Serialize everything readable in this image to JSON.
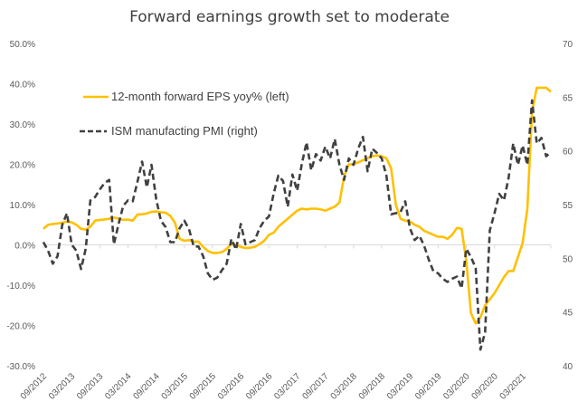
{
  "chart_data": {
    "type": "line",
    "title": "Forward earnings growth set to moderate",
    "xlabel": "",
    "ylabel_left": "",
    "ylabel_right": "",
    "left_axis": {
      "ylim": [
        -30,
        50
      ],
      "ticks": [
        50,
        40,
        30,
        20,
        10,
        0,
        -10,
        -20,
        -30
      ],
      "tick_labels": [
        "50.0%",
        "40.0%",
        "30.0%",
        "20.0%",
        "10.0%",
        "0.0%",
        "-10.0%",
        "-20.0%",
        "-30.0%"
      ]
    },
    "right_axis": {
      "ylim": [
        40,
        70
      ],
      "ticks": [
        70,
        65,
        60,
        55,
        50,
        45,
        40
      ],
      "tick_labels": [
        "70",
        "65",
        "60",
        "55",
        "50",
        "45",
        "40"
      ]
    },
    "x_start": "09/2012",
    "x_end": "09/2021",
    "x_frequency": "monthly",
    "x_tick_labels": [
      "09/2012",
      "03/2013",
      "09/2013",
      "03/2014",
      "09/2014",
      "03/2015",
      "09/2015",
      "03/2016",
      "09/2016",
      "03/2017",
      "09/2017",
      "03/2018",
      "09/2018",
      "03/2019",
      "09/2019",
      "03/2020",
      "09/2020",
      "03/2021"
    ],
    "grid": false,
    "zero_line": true,
    "legend": {
      "placement": "top-left",
      "entries": [
        {
          "label": "12-month forward EPS yoy% (left)",
          "style": "solid",
          "color": "#FFC000"
        },
        {
          "label": "ISM manufacting PMI (right)",
          "style": "dashed",
          "color": "#404040"
        }
      ]
    },
    "series": [
      {
        "name": "12-month forward EPS yoy% (left)",
        "axis": "left",
        "color": "#FFC000",
        "values": [
          4.0,
          5.0,
          5.2,
          5.3,
          5.5,
          5.8,
          5.6,
          5.0,
          4.0,
          3.8,
          4.5,
          6.0,
          6.2,
          6.3,
          6.5,
          6.8,
          6.5,
          6.2,
          6.3,
          6.0,
          7.5,
          7.6,
          7.8,
          8.2,
          8.3,
          8.1,
          8.0,
          7.2,
          5.5,
          1.5,
          1.0,
          1.2,
          0.8,
          0.8,
          -0.5,
          -1.5,
          -2.0,
          -2.0,
          -1.8,
          -1.0,
          0.3,
          0.0,
          -0.5,
          -0.8,
          -0.7,
          -0.5,
          0.2,
          1.0,
          2.5,
          3.0,
          4.5,
          5.5,
          6.5,
          7.5,
          8.5,
          9.0,
          8.8,
          9.0,
          9.0,
          8.8,
          8.5,
          9.0,
          9.5,
          10.5,
          17.0,
          20.0,
          20.0,
          20.5,
          21.0,
          21.5,
          22.0,
          22.2,
          22.0,
          21.5,
          19.0,
          10.0,
          6.5,
          6.0,
          5.8,
          5.0,
          4.5,
          3.5,
          3.0,
          2.5,
          2.0,
          2.0,
          1.5,
          2.5,
          4.2,
          4.0,
          -4.0,
          -17.0,
          -19.5,
          -18.0,
          -15.0,
          -13.5,
          -12.0,
          -10.0,
          -8.0,
          -6.5,
          -6.5,
          -3.0,
          0.5,
          9.0,
          33.0,
          39.0,
          39.0,
          39.0,
          38.0
        ]
      },
      {
        "name": "ISM manufacting PMI (right)",
        "axis": "right",
        "color": "#404040",
        "values": [
          51.5,
          50.7,
          49.5,
          50.2,
          53.1,
          54.2,
          51.3,
          50.7,
          49.0,
          50.9,
          55.4,
          55.7,
          56.4,
          57.0,
          57.3,
          51.3,
          53.2,
          54.9,
          55.4,
          55.3,
          57.1,
          59.0,
          56.6,
          58.7,
          55.5,
          53.5,
          52.9,
          51.5,
          51.5,
          52.8,
          53.5,
          52.7,
          51.1,
          51.1,
          50.2,
          48.6,
          48.0,
          48.2,
          48.9,
          49.5,
          51.8,
          50.8,
          53.2,
          51.3,
          51.5,
          51.7,
          52.8,
          53.5,
          53.9,
          56.0,
          57.7,
          57.2,
          54.8,
          57.8,
          56.3,
          58.8,
          60.8,
          58.2,
          59.7,
          59.1,
          60.4,
          59.3,
          61.1,
          58.7,
          57.3,
          59.3,
          58.7,
          60.2,
          61.3,
          58.1,
          60.2,
          59.8,
          59.3,
          57.7,
          54.1,
          54.2,
          54.3,
          55.3,
          52.8,
          51.7,
          52.1,
          51.2,
          49.9,
          48.8,
          48.6,
          48.1,
          47.8,
          48.1,
          48.3,
          47.2,
          50.9,
          50.1,
          49.1,
          41.5,
          43.1,
          52.6,
          54.2,
          56.0,
          55.4,
          57.5,
          60.7,
          58.7,
          60.5,
          58.7,
          64.7,
          60.7,
          61.2,
          59.5,
          59.9
        ]
      }
    ]
  }
}
